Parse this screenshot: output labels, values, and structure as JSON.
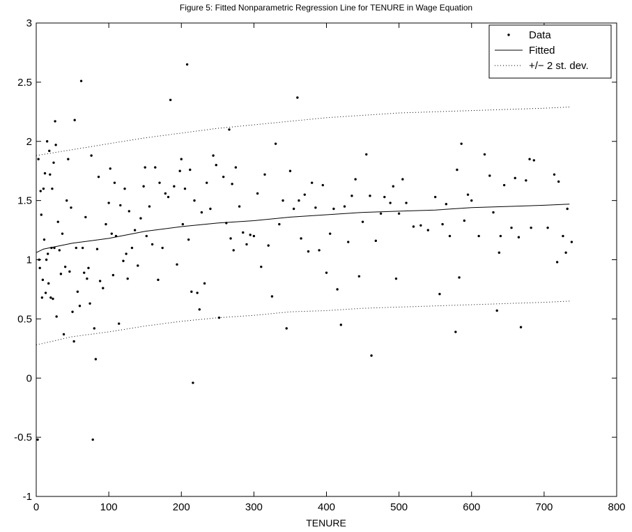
{
  "chart_data": {
    "type": "scatter",
    "title": "Figure 5: Fitted Nonparametric Regression Line for TENURE in Wage Equation",
    "x_label": "TENURE",
    "xlim": [
      0,
      800
    ],
    "xticks": [
      0,
      100,
      200,
      300,
      400,
      500,
      600,
      700,
      800
    ],
    "ylim": [
      -1,
      3
    ],
    "yticks": [
      -1,
      -0.5,
      0,
      0.5,
      1,
      1.5,
      2,
      2.5,
      3
    ],
    "grid": false,
    "legend": "upper right",
    "series": [
      {
        "name": "Data",
        "style": "points",
        "color": "#000000",
        "x": [
          2,
          3,
          4,
          5,
          6,
          7,
          8,
          9,
          10,
          11,
          12,
          13,
          14,
          15,
          16,
          17,
          18,
          19,
          20,
          21,
          22,
          23,
          24,
          25,
          26,
          27,
          28,
          30,
          32,
          34,
          36,
          38,
          40,
          42,
          44,
          46,
          48,
          50,
          52,
          53,
          55,
          57,
          60,
          62,
          64,
          66,
          68,
          70,
          72,
          74,
          76,
          78,
          80,
          82,
          84,
          86,
          88,
          92,
          96,
          100,
          102,
          104,
          106,
          108,
          110,
          114,
          116,
          120,
          122,
          124,
          126,
          128,
          132,
          136,
          140,
          144,
          148,
          150,
          152,
          156,
          160,
          164,
          168,
          170,
          174,
          178,
          182,
          185,
          190,
          194,
          198,
          200,
          202,
          205,
          208,
          210,
          212,
          214,
          216,
          218,
          222,
          225,
          228,
          232,
          235,
          240,
          244,
          248,
          252,
          258,
          262,
          266,
          268,
          270,
          272,
          275,
          280,
          285,
          290,
          295,
          300,
          305,
          310,
          315,
          320,
          325,
          330,
          335,
          340,
          345,
          350,
          355,
          360,
          362,
          365,
          370,
          375,
          380,
          385,
          390,
          395,
          400,
          405,
          410,
          415,
          420,
          425,
          430,
          435,
          440,
          445,
          450,
          455,
          460,
          462,
          468,
          475,
          480,
          488,
          492,
          496,
          500,
          505,
          510,
          520,
          530,
          540,
          550,
          556,
          560,
          565,
          570,
          578,
          580,
          583,
          586,
          590,
          595,
          600,
          610,
          618,
          625,
          630,
          635,
          638,
          640,
          645,
          655,
          660,
          665,
          668,
          675,
          680,
          682,
          686,
          705,
          714,
          718,
          720,
          726,
          730,
          732,
          738
        ],
        "values": [
          -0.52,
          1.85,
          1.0,
          0.93,
          1.58,
          1.38,
          0.68,
          0.83,
          1.6,
          1.17,
          1.73,
          0.72,
          1.0,
          2.0,
          1.05,
          0.8,
          1.92,
          1.72,
          0.68,
          1.1,
          1.6,
          0.67,
          1.82,
          1.1,
          2.17,
          1.97,
          0.52,
          1.32,
          1.08,
          0.88,
          1.22,
          0.37,
          0.94,
          1.5,
          1.85,
          0.9,
          1.44,
          0.56,
          0.31,
          2.18,
          1.1,
          0.73,
          0.61,
          2.51,
          1.1,
          0.89,
          1.36,
          0.84,
          0.93,
          0.63,
          1.88,
          -0.52,
          0.42,
          0.16,
          1.09,
          1.7,
          0.82,
          0.76,
          1.3,
          1.48,
          1.77,
          1.22,
          0.87,
          1.65,
          1.2,
          0.46,
          1.46,
          0.99,
          1.6,
          1.05,
          0.84,
          1.41,
          1.1,
          1.25,
          0.95,
          1.35,
          1.62,
          1.78,
          1.2,
          1.45,
          1.13,
          1.78,
          0.83,
          1.65,
          1.1,
          1.56,
          1.53,
          2.35,
          1.62,
          0.96,
          1.75,
          1.85,
          1.3,
          1.6,
          2.65,
          1.17,
          1.76,
          0.73,
          -0.04,
          1.5,
          0.72,
          0.58,
          1.4,
          0.8,
          1.65,
          1.43,
          1.88,
          1.8,
          0.51,
          1.7,
          1.31,
          2.1,
          1.18,
          1.64,
          1.08,
          1.78,
          1.45,
          1.23,
          1.13,
          1.21,
          1.2,
          1.56,
          0.94,
          1.72,
          1.12,
          0.69,
          1.98,
          1.3,
          1.5,
          0.42,
          1.75,
          1.43,
          2.37,
          1.5,
          1.18,
          1.55,
          1.07,
          1.65,
          1.44,
          1.08,
          1.63,
          0.89,
          1.22,
          1.43,
          0.75,
          0.45,
          1.45,
          1.15,
          1.54,
          1.68,
          0.86,
          1.32,
          1.89,
          1.54,
          0.19,
          1.16,
          1.39,
          1.53,
          1.48,
          1.62,
          0.84,
          1.39,
          1.68,
          1.48,
          1.28,
          1.29,
          1.25,
          1.53,
          0.71,
          1.3,
          1.47,
          1.2,
          0.39,
          1.76,
          0.85,
          1.98,
          1.33,
          1.55,
          1.5,
          1.2,
          1.89,
          1.71,
          1.4,
          0.57,
          1.06,
          1.2,
          1.63,
          1.27,
          1.69,
          1.19,
          0.43,
          1.67,
          1.85,
          1.27,
          1.84,
          1.27,
          1.72,
          0.98,
          1.66,
          1.2,
          1.06,
          1.43,
          1.15
        ]
      },
      {
        "name": "Fitted",
        "style": "line",
        "color": "#000000",
        "x": [
          0,
          10,
          50,
          100,
          150,
          200,
          250,
          300,
          350,
          400,
          450,
          500,
          550,
          600,
          650,
          700,
          735
        ],
        "values": [
          1.06,
          1.09,
          1.14,
          1.18,
          1.24,
          1.28,
          1.31,
          1.33,
          1.36,
          1.38,
          1.4,
          1.41,
          1.42,
          1.44,
          1.45,
          1.46,
          1.47
        ]
      },
      {
        "name": "+/− 2 st. dev.",
        "style": "dotted",
        "color": "#000000",
        "x": [
          0,
          50,
          100,
          150,
          200,
          250,
          300,
          350,
          400,
          450,
          500,
          550,
          600,
          650,
          700,
          735
        ],
        "values": [
          1.88,
          1.93,
          1.98,
          2.03,
          2.07,
          2.11,
          2.14,
          2.17,
          2.2,
          2.22,
          2.24,
          2.25,
          2.26,
          2.27,
          2.28,
          2.29
        ],
        "lower": [
          0.28,
          0.35,
          0.39,
          0.44,
          0.48,
          0.51,
          0.53,
          0.56,
          0.57,
          0.59,
          0.6,
          0.61,
          0.62,
          0.63,
          0.64,
          0.65
        ]
      }
    ]
  }
}
